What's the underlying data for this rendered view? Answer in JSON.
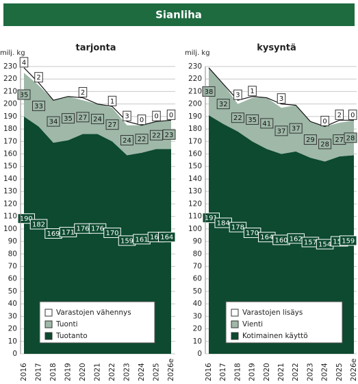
{
  "header": {
    "title": "Sianliha"
  },
  "chart_data": [
    {
      "type": "area",
      "stacked": true,
      "title": "tarjonta",
      "ylabel": "milj. kg",
      "categories": [
        "2016",
        "2017",
        "2018",
        "2019",
        "2020",
        "2021",
        "2022",
        "2023",
        "2024",
        "2025",
        "2026e"
      ],
      "series": [
        {
          "name": "Tuotanto",
          "color": "#0d4a30",
          "values": [
            190,
            182,
            169,
            171,
            176,
            176,
            170,
            159,
            161,
            164,
            164
          ]
        },
        {
          "name": "Tuonti",
          "color": "#9fb8a8",
          "values": [
            35,
            33,
            34,
            35,
            27,
            24,
            27,
            24,
            22,
            22,
            23
          ]
        },
        {
          "name": "Varastojen vähennys",
          "color": "#ffffff",
          "values": [
            4,
            2,
            0,
            0,
            2,
            0,
            1,
            3,
            0,
            0,
            0
          ],
          "value_labels": [
            "4",
            "2",
            null,
            null,
            "2",
            null,
            "1",
            "3",
            "0",
            "0",
            "0"
          ]
        }
      ],
      "ylim": [
        0,
        230
      ],
      "yticks": [
        0,
        10,
        20,
        30,
        40,
        50,
        60,
        70,
        80,
        90,
        100,
        110,
        120,
        130,
        140,
        150,
        160,
        170,
        180,
        190,
        200,
        210,
        220,
        230
      ],
      "grid": true
    },
    {
      "type": "area",
      "stacked": true,
      "title": "kysyntä",
      "ylabel": "milj. kg",
      "categories": [
        "2016",
        "2017",
        "2018",
        "2019",
        "2020",
        "2021",
        "2022",
        "2023",
        "2024",
        "2025",
        "2026e"
      ],
      "series": [
        {
          "name": "Kotimainen käyttö",
          "color": "#0d4a30",
          "values": [
            191,
            184,
            178,
            170,
            164,
            160,
            162,
            157,
            154,
            158,
            159
          ]
        },
        {
          "name": "Vienti",
          "color": "#9fb8a8",
          "values": [
            38,
            32,
            22,
            35,
            41,
            37,
            37,
            29,
            28,
            27,
            28
          ]
        },
        {
          "name": "Varastojen lisäys",
          "color": "#ffffff",
          "values": [
            0,
            0,
            3,
            1,
            0,
            3,
            0,
            0,
            0,
            2,
            0
          ],
          "value_labels": [
            null,
            null,
            "3",
            "1",
            null,
            "3",
            null,
            null,
            "0",
            "2",
            "0"
          ]
        }
      ],
      "ylim": [
        0,
        230
      ],
      "yticks": [
        0,
        10,
        20,
        30,
        40,
        50,
        60,
        70,
        80,
        90,
        100,
        110,
        120,
        130,
        140,
        150,
        160,
        170,
        180,
        190,
        200,
        210,
        220,
        230
      ],
      "grid": true
    }
  ]
}
